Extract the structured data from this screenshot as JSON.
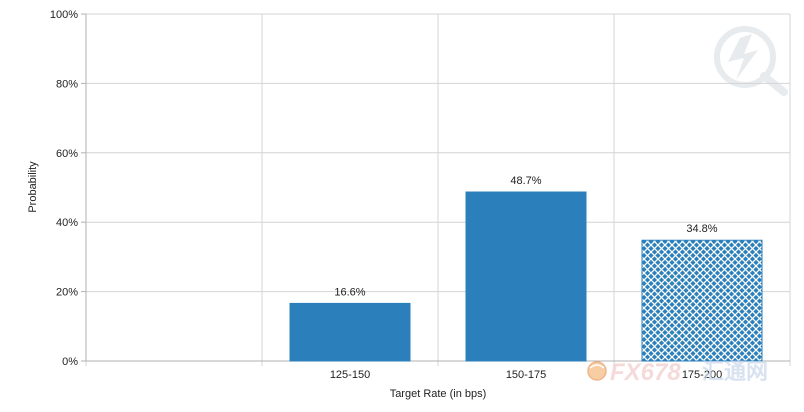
{
  "chart_data": {
    "type": "bar",
    "categories": [
      "",
      "125-150",
      "150-175",
      "175-200"
    ],
    "values": [
      null,
      16.6,
      48.7,
      34.8
    ],
    "data_labels": [
      "",
      "16.6%",
      "48.7%",
      "34.8%"
    ],
    "bar_patterns": [
      "solid",
      "solid",
      "solid",
      "crosshatch"
    ],
    "xlabel": "Target Rate (in bps)",
    "ylabel": "Probability",
    "ylim": [
      0,
      100
    ],
    "yticks": [
      0,
      20,
      40,
      60,
      80,
      100
    ],
    "ytick_labels": [
      "0%",
      "20%",
      "40%",
      "60%",
      "80%",
      "100%"
    ],
    "grid": true,
    "colors": {
      "bar": "#2b7fbb",
      "grid": "#d4d4d4",
      "axis": "#b0b0b0",
      "text": "#222222"
    }
  },
  "watermark": {
    "text": "FX678",
    "cn_text": "汇通网"
  }
}
